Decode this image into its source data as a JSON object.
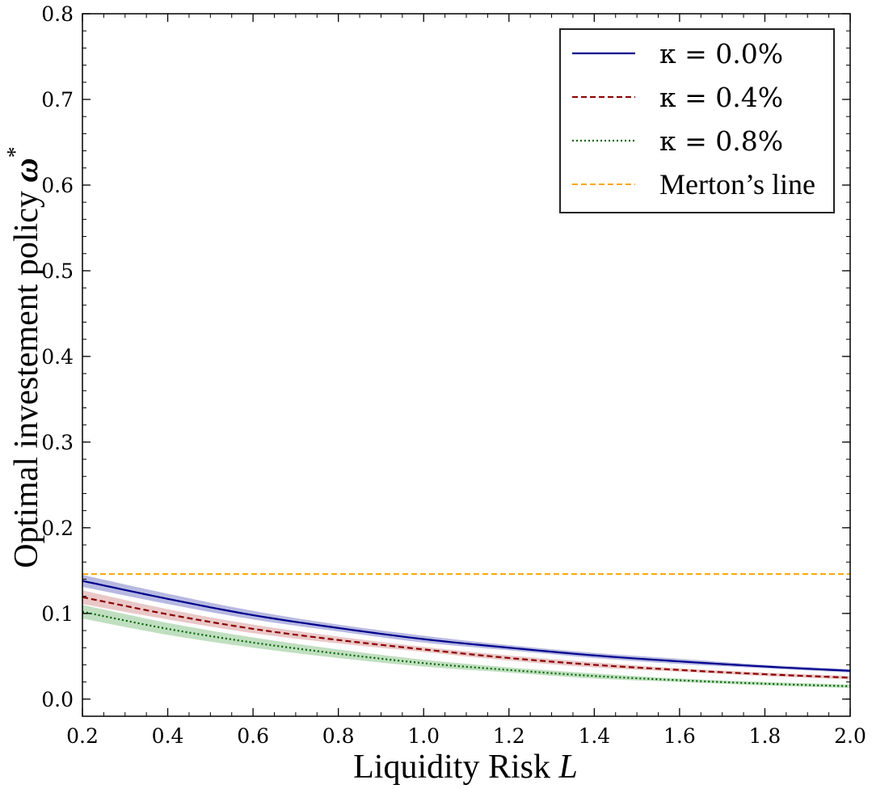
{
  "chart_data": {
    "type": "line",
    "title": "",
    "xlabel": "Liquidity Risk",
    "xlabel_var": "L",
    "ylabel": "Optimal investement policy",
    "ylabel_var": "ω",
    "ylabel_sup": "*",
    "xlim": [
      0.2,
      2.0
    ],
    "ylim": [
      -0.02,
      0.8
    ],
    "grid": false,
    "legend_position": "top-right",
    "xticks": [
      0.2,
      0.4,
      0.6,
      0.8,
      1.0,
      1.2,
      1.4,
      1.6,
      1.8,
      2.0
    ],
    "xtick_labels": [
      "0.2",
      "0.4",
      "0.6",
      "0.8",
      "1.0",
      "1.2",
      "1.4",
      "1.6",
      "1.8",
      "2.0"
    ],
    "yticks": [
      0.0,
      0.1,
      0.2,
      0.3,
      0.4,
      0.5,
      0.6,
      0.7,
      0.8
    ],
    "ytick_labels": [
      "0.0",
      "0.1",
      "0.2",
      "0.3",
      "0.4",
      "0.5",
      "0.6",
      "0.7",
      "0.8"
    ],
    "x": [
      0.2,
      0.4,
      0.6,
      0.8,
      1.0,
      1.2,
      1.4,
      1.6,
      1.8,
      2.0
    ],
    "series": [
      {
        "name": "κ = 0.0%",
        "color": "#00008b",
        "style": "solid",
        "values": [
          0.138,
          0.117,
          0.098,
          0.083,
          0.07,
          0.06,
          0.051,
          0.044,
          0.038,
          0.033
        ],
        "band": [
          0.007,
          0.006,
          0.005,
          0.004,
          0.004,
          0.003,
          0.003,
          0.003,
          0.002,
          0.002
        ],
        "band_color": "#7b7fc8"
      },
      {
        "name": "κ = 0.4%",
        "color": "#8b0000",
        "style": "dashed",
        "values": [
          0.119,
          0.099,
          0.082,
          0.069,
          0.058,
          0.048,
          0.04,
          0.034,
          0.029,
          0.025
        ],
        "band": [
          0.008,
          0.006,
          0.005,
          0.004,
          0.003,
          0.003,
          0.003,
          0.002,
          0.002,
          0.002
        ],
        "band_color": "#d89a9a"
      },
      {
        "name": "κ = 0.8%",
        "color": "#006400",
        "style": "dotted",
        "values": [
          0.102,
          0.082,
          0.066,
          0.053,
          0.042,
          0.034,
          0.027,
          0.022,
          0.018,
          0.015
        ],
        "band": [
          0.008,
          0.007,
          0.006,
          0.005,
          0.004,
          0.003,
          0.003,
          0.002,
          0.002,
          0.002
        ],
        "band_color": "#8cc48c"
      }
    ],
    "reference_line": {
      "name": "Merton’s line",
      "value": 0.146,
      "color": "#ffa500",
      "style": "dashed"
    }
  }
}
